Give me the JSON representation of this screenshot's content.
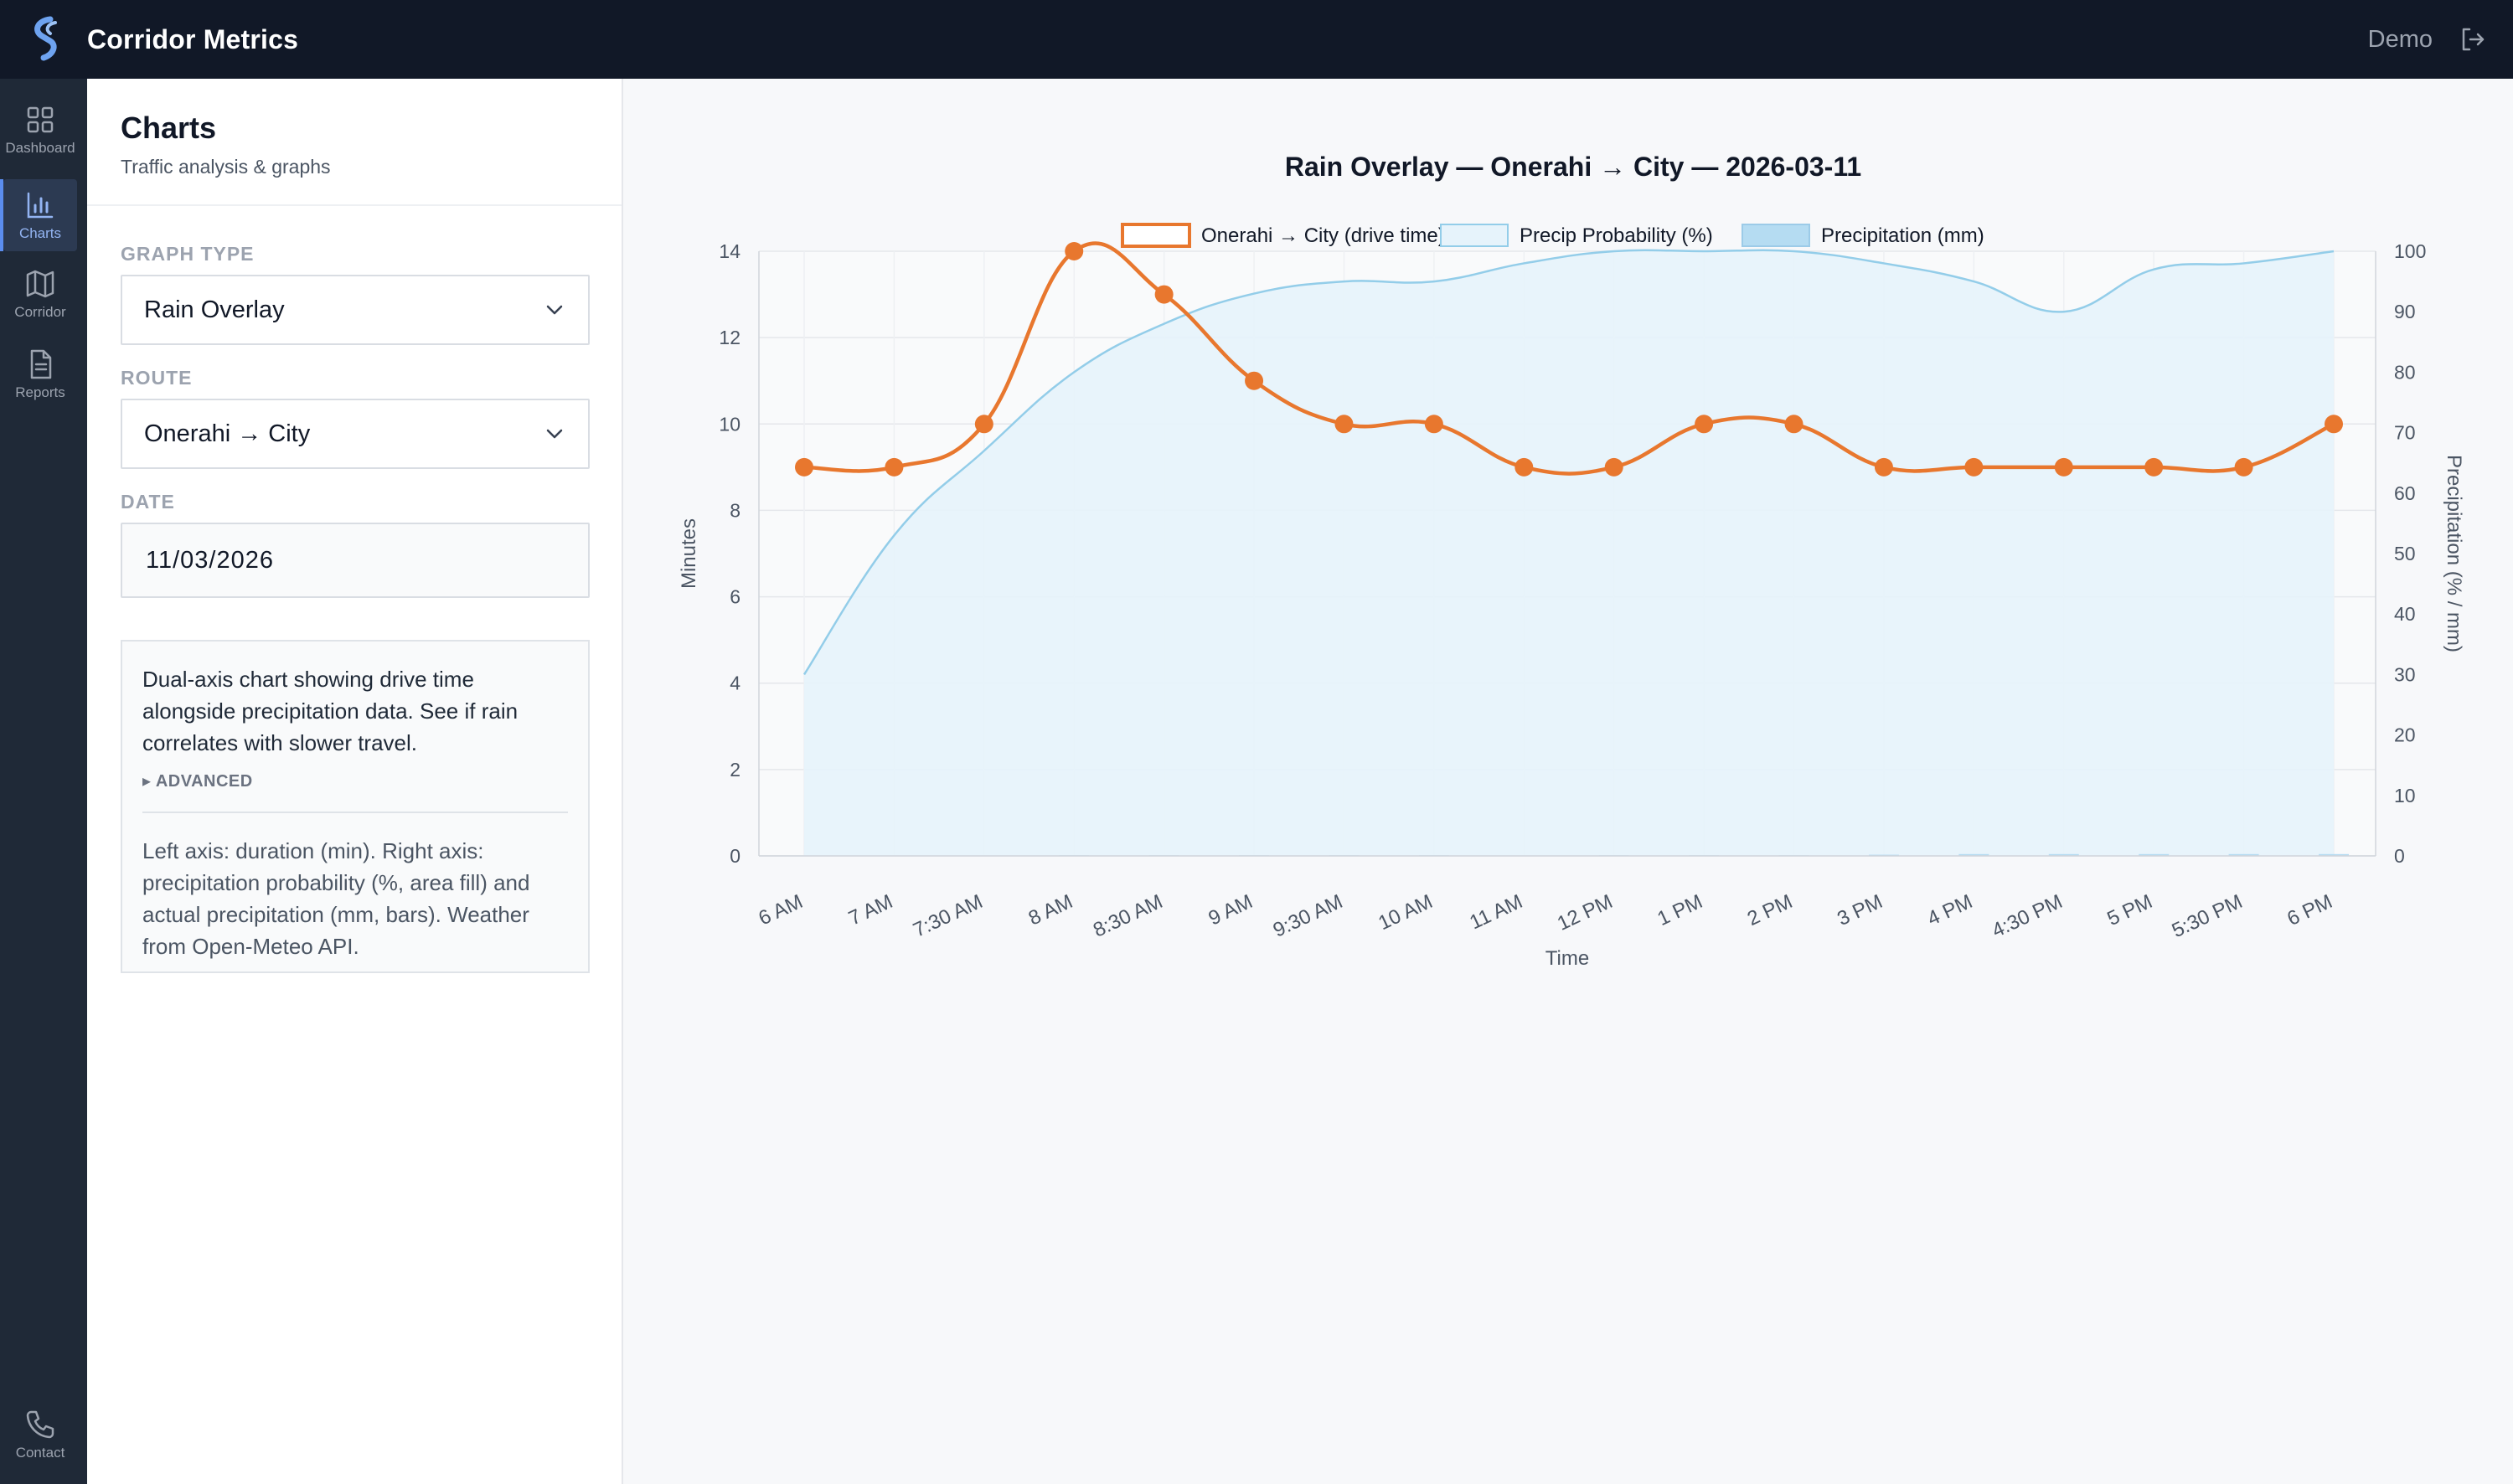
{
  "app": {
    "title": "Corridor Metrics",
    "user": "Demo"
  },
  "nav": {
    "items": [
      {
        "label": "Dashboard",
        "icon": "grid-icon"
      },
      {
        "label": "Charts",
        "icon": "bar-chart-icon",
        "active": true
      },
      {
        "label": "Corridor",
        "icon": "map-icon"
      },
      {
        "label": "Reports",
        "icon": "document-icon"
      },
      {
        "label": "Contact",
        "icon": "phone-icon"
      }
    ]
  },
  "panel": {
    "title": "Charts",
    "subtitle": "Traffic analysis & graphs",
    "graph_type": {
      "label": "GRAPH TYPE",
      "value": "Rain Overlay"
    },
    "route": {
      "label": "ROUTE",
      "value": "Onerahi → City"
    },
    "date": {
      "label": "DATE",
      "value": "11/03/2026"
    },
    "info": {
      "text": "Dual-axis chart showing drive time alongside precipitation data. See if rain correlates with slower travel.",
      "advanced_label": "▸ ADVANCED",
      "advanced_text": "Left axis: duration (min). Right axis: precipitation probability (%, area fill) and actual precipitation (mm, bars). Weather from Open-Meteo API."
    }
  },
  "colors": {
    "drive": "#e8772e",
    "precip_prob_line": "#93cde9",
    "precip_prob_fill": "#e6f3fb",
    "precip_bar": "#b5dcf2"
  },
  "chart_data": {
    "type": "line",
    "title": "Rain Overlay — Onerahi → City — 2026-03-11",
    "xlabel": "Time",
    "ylabel": "Minutes",
    "y2label": "Precipitation (% / mm)",
    "ylim": [
      0,
      14
    ],
    "y2lim": [
      0,
      100
    ],
    "yticks": [
      0,
      2,
      4,
      6,
      8,
      10,
      12,
      14
    ],
    "y2ticks": [
      0,
      10,
      20,
      30,
      40,
      50,
      60,
      70,
      80,
      90,
      100
    ],
    "grid": true,
    "legend": "top",
    "categories": [
      "6 AM",
      "7 AM",
      "7:30 AM",
      "8 AM",
      "8:30 AM",
      "9 AM",
      "9:30 AM",
      "10 AM",
      "11 AM",
      "12 PM",
      "1 PM",
      "2 PM",
      "3 PM",
      "4 PM",
      "4:30 PM",
      "5 PM",
      "5:30 PM",
      "6 PM"
    ],
    "series": [
      {
        "name": "Onerahi → City (drive time)",
        "type": "line",
        "axis": "left",
        "values": [
          9,
          9,
          10,
          14,
          13,
          11,
          10,
          10,
          9,
          9,
          10,
          10,
          9,
          9,
          9,
          9,
          9,
          10
        ]
      },
      {
        "name": "Precip Probability (%)",
        "type": "area",
        "axis": "right",
        "values": [
          30,
          53,
          67,
          80,
          88,
          93,
          95,
          95,
          98,
          100,
          100,
          100,
          98,
          95,
          90,
          97,
          98,
          100
        ]
      },
      {
        "name": "Precipitation (mm)",
        "type": "bar",
        "axis": "right",
        "values": [
          0,
          0,
          0,
          0.1,
          0.1,
          0.1,
          0.1,
          0.1,
          0,
          0.1,
          0.1,
          0.1,
          0.2,
          0.3,
          0.3,
          0.3,
          0.3,
          0.3
        ]
      }
    ]
  }
}
